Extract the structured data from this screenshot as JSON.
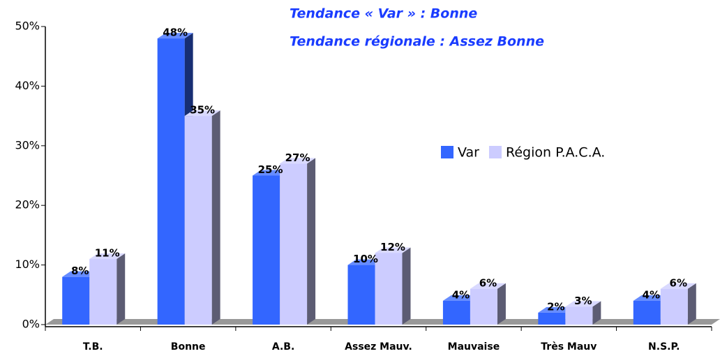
{
  "chart_data": {
    "type": "bar3d",
    "annotations": [
      "Tendance « Var » : Bonne",
      "Tendance régionale : Assez Bonne"
    ],
    "categories": [
      "T.B.",
      "Bonne",
      "A.B.",
      "Assez Mauv.",
      "Mauvaise",
      "Très Mauv",
      "N.S.P."
    ],
    "series": [
      {
        "name": "Var",
        "color": "#3366ff",
        "values": [
          8,
          48,
          25,
          10,
          4,
          2,
          4
        ],
        "value_labels": [
          "8%",
          "48%",
          "25%",
          "10%",
          "4%",
          "2%",
          "4%"
        ]
      },
      {
        "name": "Région P.A.C.A.",
        "color": "#ccccff",
        "values": [
          11,
          35,
          27,
          12,
          6,
          3,
          6
        ],
        "value_labels": [
          "11%",
          "35%",
          "27%",
          "12%",
          "6%",
          "3%",
          "6%"
        ]
      }
    ],
    "ylim": [
      0,
      50
    ],
    "yticks": [
      {
        "value": 0,
        "label": "0%"
      },
      {
        "value": 10,
        "label": "10%"
      },
      {
        "value": 20,
        "label": "20%"
      },
      {
        "value": 30,
        "label": "30%"
      },
      {
        "value": 40,
        "label": "40%"
      },
      {
        "value": 50,
        "label": "50%"
      }
    ],
    "legend": "right"
  }
}
